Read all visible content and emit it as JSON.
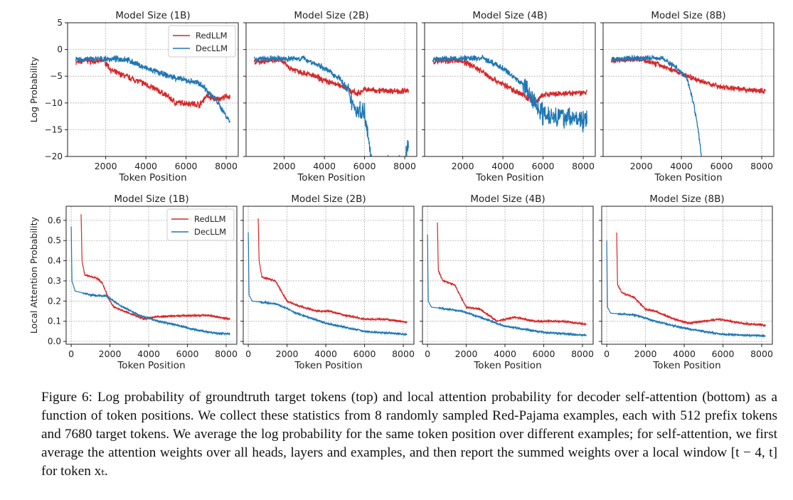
{
  "legend": {
    "red": "RedLLM",
    "dec": "DecLLM"
  },
  "colors": {
    "red": "#d62728",
    "dec": "#1f77b4"
  },
  "caption": "Figure 6:  Log probability of groundtruth target tokens (top) and local attention probability for decoder self-attention (bottom) as a function of token positions. We collect these statistics from 8 randomly sampled Red-Pajama examples, each with 512 prefix tokens and 7680 target tokens. We average the log probability for the same token position over different examples; for self-attention, we first average the attention weights over all heads, layers and examples, and then report the summed weights over a local window [t − 4, t] for token xₜ.",
  "chart_data": [
    {
      "type": "line",
      "title": "Model Size (1B)",
      "xlabel": "Token Position",
      "ylabel": "Log Probability",
      "xlim": [
        100,
        8600
      ],
      "ylim": [
        -20,
        5
      ],
      "xticks": [
        2000,
        4000,
        6000,
        8000
      ],
      "yticks": [
        5,
        0,
        -5,
        -10,
        -15,
        -20
      ],
      "ytick_labels": [
        "5",
        "0",
        "−5",
        "−10",
        "−15",
        "−20"
      ],
      "grid": true,
      "legend": "top-right",
      "noise": 0.45,
      "series": [
        {
          "name": "RedLLM",
          "points": [
            [
              512,
              -2.5
            ],
            [
              1000,
              -2
            ],
            [
              1500,
              -2.3
            ],
            [
              1900,
              -2
            ],
            [
              2300,
              -4
            ],
            [
              3000,
              -5
            ],
            [
              4000,
              -6.5
            ],
            [
              5000,
              -8.5
            ],
            [
              5500,
              -10
            ],
            [
              6000,
              -10
            ],
            [
              6700,
              -10.3
            ],
            [
              7000,
              -8.7
            ],
            [
              7500,
              -9.3
            ],
            [
              8192,
              -8.7
            ]
          ]
        },
        {
          "name": "DecLLM",
          "points": [
            [
              512,
              -2
            ],
            [
              1000,
              -1.8
            ],
            [
              2000,
              -1.8
            ],
            [
              3000,
              -1.8
            ],
            [
              4000,
              -3.5
            ],
            [
              5000,
              -4.8
            ],
            [
              6000,
              -5.8
            ],
            [
              6700,
              -6.3
            ],
            [
              7500,
              -9.5
            ],
            [
              8192,
              -13.5
            ]
          ]
        }
      ]
    },
    {
      "type": "line",
      "title": "Model Size (2B)",
      "xlabel": "Token Position",
      "ylabel": "",
      "xlim": [
        100,
        8600
      ],
      "ylim": [
        -20,
        5
      ],
      "xticks": [
        2000,
        4000,
        6000,
        8000
      ],
      "yticks": [
        5,
        0,
        -5,
        -10,
        -15,
        -20
      ],
      "ytick_labels": [],
      "grid": true,
      "noise": 0.45,
      "series": [
        {
          "name": "RedLLM",
          "points": [
            [
              512,
              -2.3
            ],
            [
              1800,
              -2
            ],
            [
              2300,
              -3.5
            ],
            [
              3500,
              -5
            ],
            [
              4000,
              -5.8
            ],
            [
              5000,
              -7
            ],
            [
              5600,
              -8.3
            ],
            [
              6000,
              -7.5
            ],
            [
              7000,
              -7.7
            ],
            [
              8192,
              -7.8
            ]
          ]
        },
        {
          "name": "DecLLM",
          "points": [
            [
              512,
              -1.8
            ],
            [
              3000,
              -1.7
            ],
            [
              4000,
              -3.5
            ],
            [
              4800,
              -5.5
            ],
            [
              5300,
              -9
            ],
            [
              5600,
              -11.5
            ],
            [
              6000,
              -11.5
            ],
            [
              6200,
              -16
            ],
            [
              6350,
              -22
            ],
            [
              7950,
              -22
            ],
            [
              8050,
              -20
            ],
            [
              8192,
              -17.5
            ]
          ]
        }
      ]
    },
    {
      "type": "line",
      "title": "Model Size (4B)",
      "xlabel": "Token Position",
      "ylabel": "",
      "xlim": [
        100,
        8600
      ],
      "ylim": [
        -20,
        5
      ],
      "xticks": [
        2000,
        4000,
        6000,
        8000
      ],
      "yticks": [
        5,
        0,
        -5,
        -10,
        -15,
        -20
      ],
      "ytick_labels": [],
      "grid": true,
      "noise": 0.45,
      "series": [
        {
          "name": "RedLLM",
          "points": [
            [
              512,
              -2.3
            ],
            [
              1800,
              -2
            ],
            [
              2500,
              -3
            ],
            [
              3500,
              -5.5
            ],
            [
              4500,
              -7.5
            ],
            [
              5000,
              -8.5
            ],
            [
              5600,
              -10
            ],
            [
              6000,
              -8.5
            ],
            [
              7000,
              -8.3
            ],
            [
              8192,
              -8
            ]
          ]
        },
        {
          "name": "DecLLM",
          "points": [
            [
              512,
              -1.8
            ],
            [
              3000,
              -1.6
            ],
            [
              4000,
              -3.5
            ],
            [
              5000,
              -6.5
            ],
            [
              5600,
              -10
            ],
            [
              6000,
              -12
            ],
            [
              7000,
              -12.5
            ],
            [
              8192,
              -13.5
            ]
          ]
        }
      ]
    },
    {
      "type": "line",
      "title": "Model Size (8B)",
      "xlabel": "Token Position",
      "ylabel": "",
      "xlim": [
        100,
        8600
      ],
      "ylim": [
        -20,
        5
      ],
      "xticks": [
        2000,
        4000,
        6000,
        8000
      ],
      "yticks": [
        5,
        0,
        -5,
        -10,
        -15,
        -20
      ],
      "ytick_labels": [],
      "grid": true,
      "noise": 0.4,
      "series": [
        {
          "name": "RedLLM",
          "points": [
            [
              512,
              -2
            ],
            [
              2000,
              -1.8
            ],
            [
              3000,
              -3
            ],
            [
              4000,
              -4.5
            ],
            [
              5000,
              -6
            ],
            [
              6000,
              -7
            ],
            [
              7000,
              -7.5
            ],
            [
              8192,
              -7.8
            ]
          ]
        },
        {
          "name": "DecLLM",
          "points": [
            [
              512,
              -1.8
            ],
            [
              3000,
              -1.5
            ],
            [
              3800,
              -3.5
            ],
            [
              4300,
              -5.5
            ],
            [
              4600,
              -10
            ],
            [
              4800,
              -14
            ],
            [
              5000,
              -20
            ],
            [
              5100,
              -22
            ]
          ]
        }
      ]
    },
    {
      "type": "line",
      "title": "Model Size (1B)",
      "xlabel": "Token Position",
      "ylabel": "Local Attention Probability",
      "xlim": [
        -260,
        8550
      ],
      "ylim": [
        -0.014,
        0.67
      ],
      "xticks": [
        0,
        2000,
        4000,
        6000,
        8000
      ],
      "yticks": [
        0,
        0.1,
        0.2,
        0.3,
        0.4,
        0.5,
        0.6
      ],
      "ytick_labels": [
        "0.0",
        "0.1",
        "0.2",
        "0.3",
        "0.4",
        "0.5",
        "0.6"
      ],
      "grid": true,
      "legend": "top-right",
      "noise": 0.004,
      "series": [
        {
          "name": "RedLLM",
          "points": [
            [
              512,
              0.63
            ],
            [
              560,
              0.4
            ],
            [
              700,
              0.33
            ],
            [
              1400,
              0.31
            ],
            [
              1600,
              0.29
            ],
            [
              2000,
              0.2
            ],
            [
              2200,
              0.17
            ],
            [
              3000,
              0.14
            ],
            [
              3800,
              0.11
            ],
            [
              4200,
              0.12
            ],
            [
              5000,
              0.125
            ],
            [
              7000,
              0.13
            ],
            [
              8192,
              0.11
            ]
          ]
        },
        {
          "name": "DecLLM",
          "points": [
            [
              0,
              0.57
            ],
            [
              40,
              0.3
            ],
            [
              200,
              0.25
            ],
            [
              1000,
              0.23
            ],
            [
              1800,
              0.225
            ],
            [
              2500,
              0.18
            ],
            [
              3500,
              0.13
            ],
            [
              4500,
              0.1
            ],
            [
              5500,
              0.08
            ],
            [
              6500,
              0.055
            ],
            [
              7500,
              0.04
            ],
            [
              8192,
              0.038
            ]
          ]
        }
      ]
    },
    {
      "type": "line",
      "title": "Model Size (2B)",
      "xlabel": "Token Position",
      "ylabel": "",
      "xlim": [
        -260,
        8550
      ],
      "ylim": [
        -0.014,
        0.67
      ],
      "xticks": [
        0,
        2000,
        4000,
        6000,
        8000
      ],
      "yticks": [
        0,
        0.1,
        0.2,
        0.3,
        0.4,
        0.5,
        0.6
      ],
      "ytick_labels": [],
      "grid": true,
      "noise": 0.004,
      "series": [
        {
          "name": "RedLLM",
          "points": [
            [
              512,
              0.61
            ],
            [
              560,
              0.4
            ],
            [
              700,
              0.32
            ],
            [
              1400,
              0.3
            ],
            [
              2000,
              0.2
            ],
            [
              2500,
              0.18
            ],
            [
              3500,
              0.15
            ],
            [
              4200,
              0.15
            ],
            [
              5000,
              0.13
            ],
            [
              6000,
              0.11
            ],
            [
              7000,
              0.11
            ],
            [
              8192,
              0.095
            ]
          ]
        },
        {
          "name": "DecLLM",
          "points": [
            [
              0,
              0.54
            ],
            [
              40,
              0.23
            ],
            [
              200,
              0.2
            ],
            [
              1500,
              0.185
            ],
            [
              2500,
              0.14
            ],
            [
              4000,
              0.09
            ],
            [
              6000,
              0.05
            ],
            [
              8192,
              0.035
            ]
          ]
        }
      ]
    },
    {
      "type": "line",
      "title": "Model Size (4B)",
      "xlabel": "Token Position",
      "ylabel": "",
      "xlim": [
        -260,
        8550
      ],
      "ylim": [
        -0.014,
        0.67
      ],
      "xticks": [
        0,
        2000,
        4000,
        6000,
        8000
      ],
      "yticks": [
        0,
        0.1,
        0.2,
        0.3,
        0.4,
        0.5,
        0.6
      ],
      "ytick_labels": [],
      "grid": true,
      "noise": 0.004,
      "series": [
        {
          "name": "RedLLM",
          "points": [
            [
              512,
              0.59
            ],
            [
              560,
              0.35
            ],
            [
              800,
              0.3
            ],
            [
              1400,
              0.28
            ],
            [
              2000,
              0.17
            ],
            [
              2700,
              0.16
            ],
            [
              3600,
              0.1
            ],
            [
              4500,
              0.12
            ],
            [
              5500,
              0.1
            ],
            [
              7000,
              0.1
            ],
            [
              8192,
              0.085
            ]
          ]
        },
        {
          "name": "DecLLM",
          "points": [
            [
              0,
              0.53
            ],
            [
              40,
              0.2
            ],
            [
              200,
              0.17
            ],
            [
              1800,
              0.15
            ],
            [
              3000,
              0.11
            ],
            [
              4000,
              0.075
            ],
            [
              6000,
              0.045
            ],
            [
              8192,
              0.03
            ]
          ]
        }
      ]
    },
    {
      "type": "line",
      "title": "Model Size (8B)",
      "xlabel": "Token Position",
      "ylabel": "",
      "xlim": [
        -260,
        8550
      ],
      "ylim": [
        -0.014,
        0.67
      ],
      "xticks": [
        0,
        2000,
        4000,
        6000,
        8000
      ],
      "yticks": [
        0,
        0.1,
        0.2,
        0.3,
        0.4,
        0.5,
        0.6
      ],
      "ytick_labels": [],
      "grid": true,
      "noise": 0.004,
      "series": [
        {
          "name": "RedLLM",
          "points": [
            [
              512,
              0.54
            ],
            [
              560,
              0.28
            ],
            [
              800,
              0.24
            ],
            [
              1400,
              0.22
            ],
            [
              2000,
              0.16
            ],
            [
              2500,
              0.15
            ],
            [
              3500,
              0.11
            ],
            [
              4200,
              0.09
            ],
            [
              5000,
              0.1
            ],
            [
              5800,
              0.11
            ],
            [
              7000,
              0.09
            ],
            [
              8192,
              0.08
            ]
          ]
        },
        {
          "name": "DecLLM",
          "points": [
            [
              0,
              0.5
            ],
            [
              40,
              0.17
            ],
            [
              200,
              0.14
            ],
            [
              1500,
              0.13
            ],
            [
              2500,
              0.1
            ],
            [
              4000,
              0.065
            ],
            [
              6000,
              0.035
            ],
            [
              8192,
              0.027
            ]
          ]
        }
      ]
    }
  ]
}
